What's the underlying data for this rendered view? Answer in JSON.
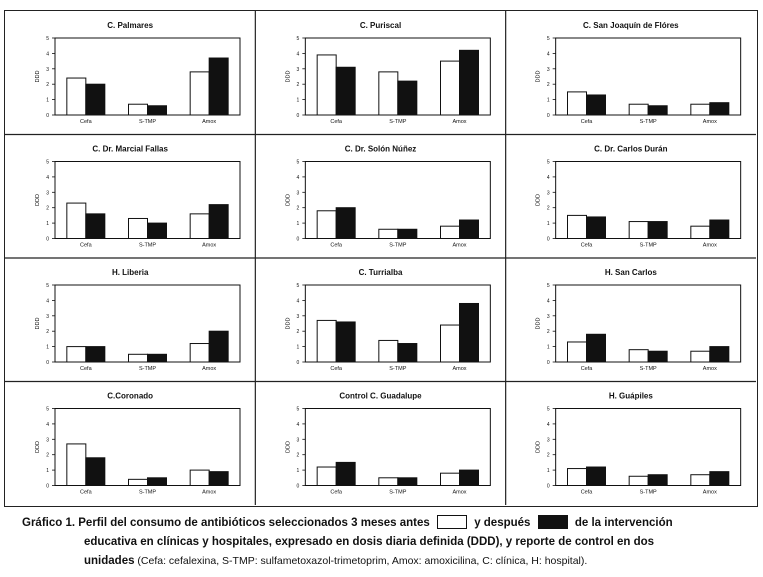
{
  "chart_data": [
    {
      "type": "bar",
      "title": "C. Palmares",
      "ylabel": "DDD",
      "categories": [
        "Cefa",
        "S-TMP",
        "Amox"
      ],
      "ylim": [
        0,
        5
      ],
      "series": [
        {
          "values": [
            2.4,
            0.7,
            2.8
          ]
        },
        {
          "values": [
            2.0,
            0.6,
            3.7
          ]
        }
      ]
    },
    {
      "type": "bar",
      "title": "C. Puriscal",
      "ylabel": "DDD",
      "categories": [
        "Cefa",
        "S-TMP",
        "Amox"
      ],
      "ylim": [
        0,
        5
      ],
      "series": [
        {
          "values": [
            3.9,
            2.8,
            3.5
          ]
        },
        {
          "values": [
            3.1,
            2.2,
            4.2
          ]
        }
      ]
    },
    {
      "type": "bar",
      "title": "C. San Joaquín de Flóres",
      "ylabel": "DDD",
      "categories": [
        "Cefa",
        "S-TMP",
        "Amox"
      ],
      "ylim": [
        0,
        5
      ],
      "series": [
        {
          "values": [
            1.5,
            0.7,
            0.7
          ]
        },
        {
          "values": [
            1.3,
            0.6,
            0.8
          ]
        }
      ]
    },
    {
      "type": "bar",
      "title": "C. Dr. Marcial Fallas",
      "ylabel": "DDD",
      "categories": [
        "Cefa",
        "S-TMP",
        "Amox"
      ],
      "ylim": [
        0,
        5
      ],
      "series": [
        {
          "values": [
            2.3,
            1.3,
            1.6
          ]
        },
        {
          "values": [
            1.6,
            1.0,
            2.2
          ]
        }
      ]
    },
    {
      "type": "bar",
      "title": "C. Dr. Solón Núñez",
      "ylabel": "DDD",
      "categories": [
        "Cefa",
        "S-TMP",
        "Amox"
      ],
      "ylim": [
        0,
        5
      ],
      "series": [
        {
          "values": [
            1.8,
            0.6,
            0.8
          ]
        },
        {
          "values": [
            2.0,
            0.6,
            1.2
          ]
        }
      ]
    },
    {
      "type": "bar",
      "title": "C. Dr. Carlos Durán",
      "ylabel": "DDD",
      "categories": [
        "Cefa",
        "S-TMP",
        "Amox"
      ],
      "ylim": [
        0,
        5
      ],
      "series": [
        {
          "values": [
            1.5,
            1.1,
            0.8
          ]
        },
        {
          "values": [
            1.4,
            1.1,
            1.2
          ]
        }
      ]
    },
    {
      "type": "bar",
      "title": "H. Liberia",
      "ylabel": "DDD",
      "categories": [
        "Cefa",
        "S-TMP",
        "Amox"
      ],
      "ylim": [
        0,
        5
      ],
      "series": [
        {
          "values": [
            1.0,
            0.5,
            1.2
          ]
        },
        {
          "values": [
            1.0,
            0.5,
            2.0
          ]
        }
      ]
    },
    {
      "type": "bar",
      "title": "C. Turrialba",
      "ylabel": "DDD",
      "categories": [
        "Cefa",
        "S-TMP",
        "Amox"
      ],
      "ylim": [
        0,
        5
      ],
      "series": [
        {
          "values": [
            2.7,
            1.4,
            2.4
          ]
        },
        {
          "values": [
            2.6,
            1.2,
            3.8
          ]
        }
      ]
    },
    {
      "type": "bar",
      "title": "H. San Carlos",
      "ylabel": "DDD",
      "categories": [
        "Cefa",
        "S-TMP",
        "Amox"
      ],
      "ylim": [
        0,
        5
      ],
      "series": [
        {
          "values": [
            1.3,
            0.8,
            0.7
          ]
        },
        {
          "values": [
            1.8,
            0.7,
            1.0
          ]
        }
      ]
    },
    {
      "type": "bar",
      "title": "C.Coronado",
      "ylabel": "DDD",
      "categories": [
        "Cefa",
        "S-TMP",
        "Amox"
      ],
      "ylim": [
        0,
        5
      ],
      "series": [
        {
          "values": [
            2.7,
            0.4,
            1.0
          ]
        },
        {
          "values": [
            1.8,
            0.5,
            0.9
          ]
        }
      ]
    },
    {
      "type": "bar",
      "title": "Control C. Guadalupe",
      "ylabel": "DDD",
      "categories": [
        "Cefa",
        "S-TMP",
        "Amox"
      ],
      "ylim": [
        0,
        5
      ],
      "series": [
        {
          "values": [
            1.2,
            0.5,
            0.8
          ]
        },
        {
          "values": [
            1.5,
            0.5,
            1.0
          ]
        }
      ]
    },
    {
      "type": "bar",
      "title": "H. Guápiles",
      "ylabel": "DDD",
      "categories": [
        "Cefa",
        "S-TMP",
        "Amox"
      ],
      "ylim": [
        0,
        5
      ],
      "series": [
        {
          "values": [
            1.1,
            0.6,
            0.7
          ]
        },
        {
          "values": [
            1.2,
            0.7,
            0.9
          ]
        }
      ]
    }
  ],
  "colors": {
    "before": "#ffffff",
    "after": "#111111",
    "stroke": "#111111"
  },
  "caption": {
    "label": "Gráfico 1.",
    "line1_a": "Perfil del consumo de antibióticos seleccionados 3 meses antes",
    "line1_b": "y después",
    "line1_c": "de la intervención",
    "line2": "educativa en clínicas y hospitales, expresado en dosis diaria definida (DDD), y reporte de control en dos",
    "line3_bold": "unidades",
    "line3_normal": " (Cefa: cefalexina, S-TMP: sulfametoxazol-trimetoprim, Amox: amoxicilina, C: clínica, H: hospital)."
  }
}
